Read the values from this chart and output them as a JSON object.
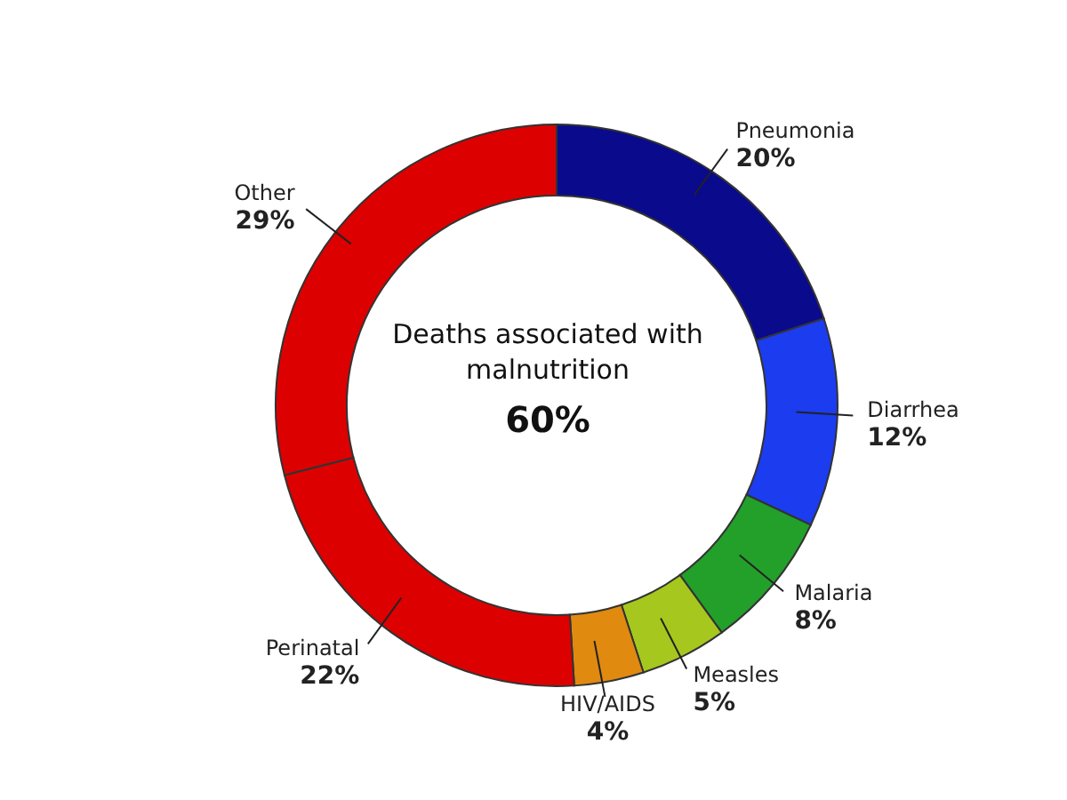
{
  "chart_data": {
    "type": "donut",
    "categories": [
      "Pneumonia",
      "Diarrhea",
      "Malaria",
      "Measles",
      "HIV/AIDS",
      "Perinatal",
      "Other"
    ],
    "values": [
      20,
      12,
      8,
      5,
      4,
      22,
      29
    ],
    "colors": [
      "#0a0a8c",
      "#1c3cf0",
      "#22a02a",
      "#a6c81e",
      "#e08a10",
      "#dd0000",
      "#dd0000"
    ],
    "value_labels": [
      "20%",
      "12%",
      "8%",
      "5%",
      "4%",
      "22%",
      "29%"
    ],
    "annotations": [
      "Deaths associated with malnutrition",
      "60%"
    ]
  }
}
